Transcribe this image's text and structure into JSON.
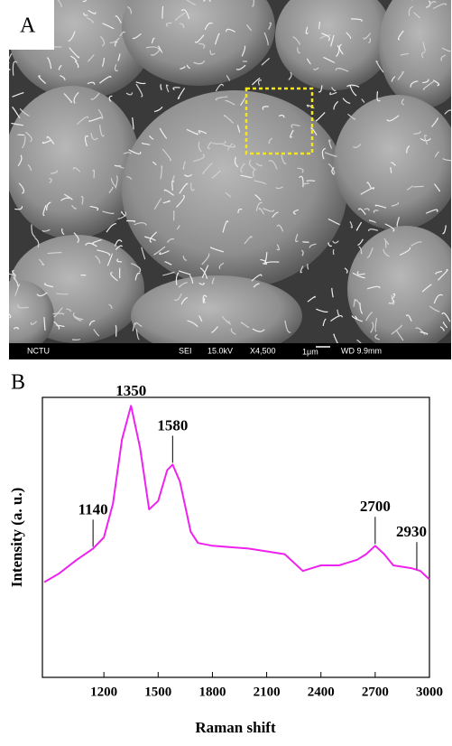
{
  "panel_a": {
    "label": "A",
    "info_bar": [
      "NCTU",
      "SEI",
      "15.0kV",
      "X4,500",
      "1μm",
      "WD 9.9mm"
    ]
  },
  "chart_data": {
    "type": "line",
    "panel_label": "B",
    "x_label": "Raman shift",
    "y_label": "Intensity (a. u.)",
    "xlim": [
      860,
      3000
    ],
    "ylim": [
      0,
      100
    ],
    "xticks": [
      1200,
      1500,
      1800,
      2100,
      2400,
      2700,
      3000
    ],
    "series": [
      {
        "color": "#ee22ee",
        "x": [
          870,
          950,
          1050,
          1140,
          1200,
          1250,
          1300,
          1350,
          1400,
          1450,
          1500,
          1550,
          1580,
          1620,
          1680,
          1720,
          1800,
          2000,
          2100,
          2200,
          2300,
          2350,
          2400,
          2500,
          2600,
          2650,
          2700,
          2750,
          2800,
          2900,
          2950,
          3000
        ],
        "values": [
          34,
          37,
          42,
          46,
          50,
          62,
          85,
          97,
          82,
          60,
          63,
          74,
          76,
          70,
          52,
          48,
          47,
          46,
          45,
          44,
          38,
          39,
          40,
          40,
          42,
          44,
          47,
          44,
          40,
          39,
          38,
          35
        ]
      }
    ],
    "annotations": [
      {
        "label": "1140",
        "x": 1140,
        "y": 46
      },
      {
        "label": "1350",
        "x": 1350,
        "y": 97
      },
      {
        "label": "1580",
        "x": 1580,
        "y": 76
      },
      {
        "label": "2700",
        "x": 2700,
        "y": 47
      },
      {
        "label": "2930",
        "x": 2930,
        "y": 38
      }
    ]
  }
}
